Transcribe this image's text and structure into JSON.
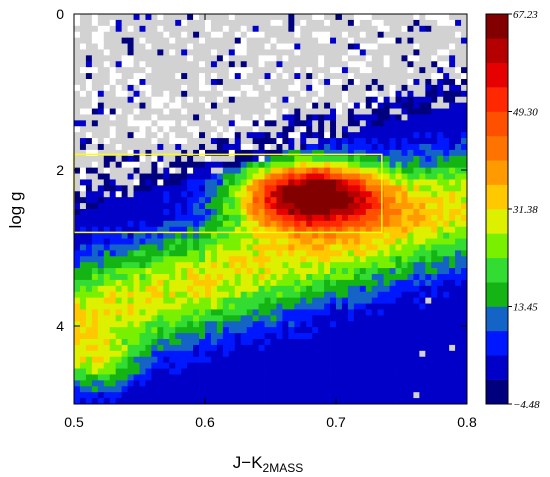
{
  "chart_data": {
    "type": "heatmap",
    "title": "",
    "xlabel": "J−K",
    "xlabel_sub": "2MASS",
    "ylabel": "log g",
    "xlim": [
      0.5,
      0.8
    ],
    "ylim": [
      0,
      5
    ],
    "y_inverted": true,
    "x_ticks": [
      "0.5",
      "0.6",
      "0.7",
      "0.8"
    ],
    "x_tick_values": [
      0.5,
      0.6,
      0.7,
      0.8
    ],
    "y_ticks": [
      "0",
      "2",
      "4"
    ],
    "y_tick_values": [
      0,
      2,
      4
    ],
    "colorbar": {
      "labels": [
        "67.23",
        "49.30",
        "31.38",
        "13.45",
        "−4.48"
      ],
      "label_values": [
        67.23,
        49.3,
        31.38,
        13.45,
        -4.48
      ],
      "range": [
        -4.48,
        67.23
      ],
      "colors": [
        "#00007f",
        "#0000c8",
        "#0018ff",
        "#1464c8",
        "#14b414",
        "#32dc32",
        "#78f000",
        "#dcf000",
        "#ffc800",
        "#ff9b00",
        "#ff7300",
        "#ff5000",
        "#ff2800",
        "#e60000",
        "#b40000",
        "#820000"
      ]
    },
    "selection_box": {
      "x_range": [
        0.5,
        0.735
      ],
      "y_range": [
        1.8,
        2.8
      ],
      "color": "#ffff00"
    },
    "missing_color": "#d2d2d2",
    "grid": false,
    "legend": "colorbar-right"
  }
}
